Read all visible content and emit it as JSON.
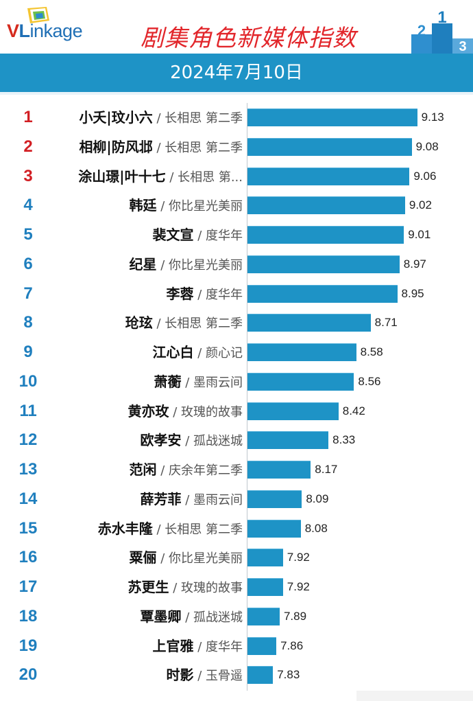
{
  "header": {
    "logo_text": "VLinkage",
    "logo_v": "V",
    "logo_l": "L",
    "logo_rest": "inkage",
    "title": "剧集角色新媒体指数",
    "podium_labels": [
      "2",
      "1",
      "3"
    ]
  },
  "date": "2024年7月10日",
  "colors": {
    "bar": "#1e93c6",
    "date_bar": "#1e93c6",
    "title": "#e2262b",
    "top_rank": "#d21f24",
    "rank": "#1f7fbe"
  },
  "chart_data": {
    "type": "bar",
    "orientation": "horizontal",
    "title": "剧集角色新媒体指数",
    "subtitle": "2024年7月10日",
    "xlim": [
      7.6,
      9.2
    ],
    "grid": false,
    "rows": [
      {
        "rank": "1",
        "character": "小夭|玟小六",
        "drama": "长相思 第二季",
        "value": 9.13
      },
      {
        "rank": "2",
        "character": "相柳|防风邶",
        "drama": "长相思 第二季",
        "value": 9.08
      },
      {
        "rank": "3",
        "character": "涂山璟|叶十七",
        "drama": "长相思 第...",
        "value": 9.06
      },
      {
        "rank": "4",
        "character": "韩廷",
        "drama": "你比星光美丽",
        "value": 9.02
      },
      {
        "rank": "5",
        "character": "裴文宣",
        "drama": "度华年",
        "value": 9.01
      },
      {
        "rank": "6",
        "character": "纪星",
        "drama": "你比星光美丽",
        "value": 8.97
      },
      {
        "rank": "7",
        "character": "李蓉",
        "drama": "度华年",
        "value": 8.95
      },
      {
        "rank": "8",
        "character": "玱玹",
        "drama": "长相思 第二季",
        "value": 8.71
      },
      {
        "rank": "9",
        "character": "江心白",
        "drama": "颜心记",
        "value": 8.58
      },
      {
        "rank": "10",
        "character": "萧蘅",
        "drama": "墨雨云间",
        "value": 8.56
      },
      {
        "rank": "11",
        "character": "黄亦玫",
        "drama": "玫瑰的故事",
        "value": 8.42
      },
      {
        "rank": "12",
        "character": "欧孝安",
        "drama": "孤战迷城",
        "value": 8.33
      },
      {
        "rank": "13",
        "character": "范闲",
        "drama": "庆余年第二季",
        "value": 8.17
      },
      {
        "rank": "14",
        "character": "薛芳菲",
        "drama": "墨雨云间",
        "value": 8.09
      },
      {
        "rank": "15",
        "character": "赤水丰隆",
        "drama": "长相思 第二季",
        "value": 8.08
      },
      {
        "rank": "16",
        "character": "粟俪",
        "drama": "你比星光美丽",
        "value": 7.92
      },
      {
        "rank": "17",
        "character": "苏更生",
        "drama": "玫瑰的故事",
        "value": 7.92
      },
      {
        "rank": "18",
        "character": "覃墨卿",
        "drama": "孤战迷城",
        "value": 7.89
      },
      {
        "rank": "19",
        "character": "上官雅",
        "drama": "度华年",
        "value": 7.86
      },
      {
        "rank": "20",
        "character": "时影",
        "drama": "玉骨遥",
        "value": 7.83
      }
    ]
  }
}
